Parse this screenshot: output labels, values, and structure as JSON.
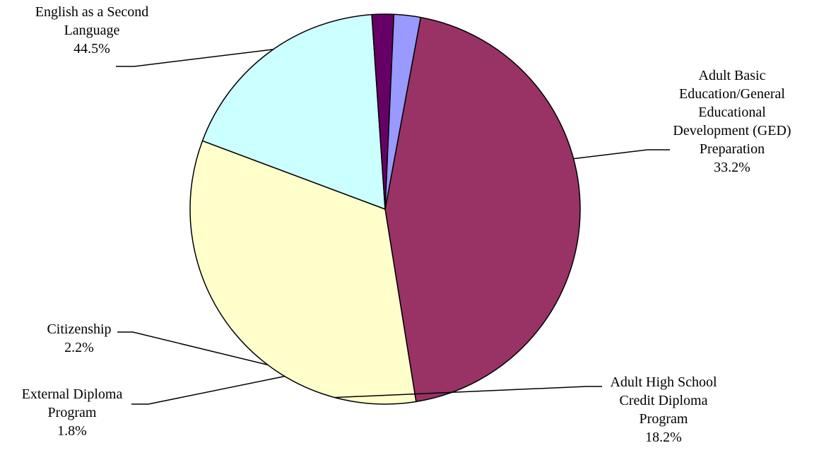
{
  "chart_data": {
    "type": "pie",
    "slices": [
      {
        "name": "English as a Second Language",
        "label_lines": [
          "English as a Second",
          "Language"
        ],
        "value": 44.5,
        "display": "44.5%",
        "color": "#993366"
      },
      {
        "name": "Adult Basic Education/General Educational Development (GED) Preparation",
        "label_lines": [
          "Adult Basic",
          "Education/General",
          "Educational",
          "Development (GED)",
          "Preparation"
        ],
        "value": 33.2,
        "display": "33.2%",
        "color": "#FFFFCC"
      },
      {
        "name": "Adult High School Credit Diploma Program",
        "label_lines": [
          "Adult High School",
          "Credit Diploma",
          "Program"
        ],
        "value": 18.2,
        "display": "18.2%",
        "color": "#CCFFFF"
      },
      {
        "name": "External Diploma Program",
        "label_lines": [
          "External Diploma",
          "Program"
        ],
        "value": 1.8,
        "display": "1.8%",
        "color": "#660066"
      },
      {
        "name": "Citizenship",
        "label_lines": [
          "Citizenship"
        ],
        "value": 2.2,
        "display": "2.2%",
        "color": "#9999FF"
      }
    ],
    "start_angle_deg": 10.5,
    "direction": "clockwise",
    "legend": "none",
    "data_labels": "outside with leader lines"
  }
}
